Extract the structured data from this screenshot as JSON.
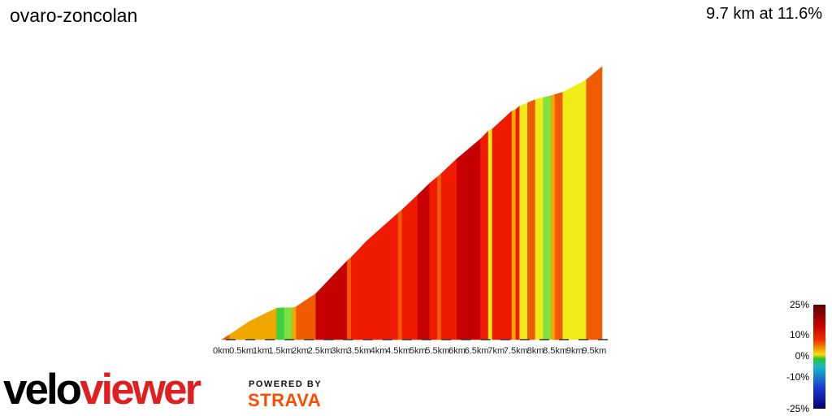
{
  "header": {
    "title": "ovaro-zoncolan",
    "summary": "9.7 km at 11.6%"
  },
  "legend": {
    "labels": [
      "25%",
      "10%",
      "0%",
      "-10%",
      "-25%"
    ]
  },
  "branding": {
    "logo_part1": "velo",
    "logo_part2": "viewer",
    "powered_by": "POWERED BY",
    "strava": "STRAVA"
  },
  "colors": {
    "extreme": "#c40000",
    "steep": "#f01a00",
    "hard": "#f05a00",
    "moderate": "#f0a800",
    "easy": "#f0ec18",
    "flat": "#7fe040",
    "green": "#40d040"
  },
  "chart_data": {
    "type": "area",
    "title": "ovaro-zoncolan",
    "xlabel": "",
    "ylabel": "",
    "xlim": [
      0,
      9.7
    ],
    "x_ticks": [
      "0km",
      "0.5km",
      "1km",
      "1.5km",
      "2km",
      "2.5km",
      "3km",
      "3.5km",
      "4km",
      "4.5km",
      "5km",
      "5.5km",
      "6km",
      "6.5km",
      "7km",
      "7.5km",
      "8km",
      "8.5km",
      "9km",
      "9.5km"
    ],
    "segments": [
      {
        "from": 0.0,
        "to": 0.2,
        "elev_start": 0,
        "elev_end": 15,
        "grade_class": "hard"
      },
      {
        "from": 0.2,
        "to": 0.7,
        "elev_start": 15,
        "elev_end": 55,
        "grade_class": "moderate"
      },
      {
        "from": 0.7,
        "to": 1.4,
        "elev_start": 55,
        "elev_end": 96,
        "grade_class": "moderate"
      },
      {
        "from": 1.4,
        "to": 1.6,
        "elev_start": 96,
        "elev_end": 97,
        "grade_class": "green"
      },
      {
        "from": 1.6,
        "to": 1.8,
        "elev_start": 97,
        "elev_end": 97,
        "grade_class": "flat"
      },
      {
        "from": 1.8,
        "to": 1.9,
        "elev_start": 97,
        "elev_end": 100,
        "grade_class": "moderate"
      },
      {
        "from": 1.9,
        "to": 2.4,
        "elev_start": 100,
        "elev_end": 140,
        "grade_class": "hard"
      },
      {
        "from": 2.4,
        "to": 3.2,
        "elev_start": 140,
        "elev_end": 240,
        "grade_class": "extreme"
      },
      {
        "from": 3.2,
        "to": 3.3,
        "elev_start": 240,
        "elev_end": 250,
        "grade_class": "hard"
      },
      {
        "from": 3.3,
        "to": 3.7,
        "elev_start": 250,
        "elev_end": 300,
        "grade_class": "steep"
      },
      {
        "from": 3.7,
        "to": 4.5,
        "elev_start": 300,
        "elev_end": 385,
        "grade_class": "steep"
      },
      {
        "from": 4.5,
        "to": 4.6,
        "elev_start": 385,
        "elev_end": 395,
        "grade_class": "hard"
      },
      {
        "from": 4.6,
        "to": 5.0,
        "elev_start": 395,
        "elev_end": 440,
        "grade_class": "steep"
      },
      {
        "from": 5.0,
        "to": 5.3,
        "elev_start": 440,
        "elev_end": 475,
        "grade_class": "extreme"
      },
      {
        "from": 5.3,
        "to": 5.5,
        "elev_start": 475,
        "elev_end": 495,
        "grade_class": "steep"
      },
      {
        "from": 5.5,
        "to": 5.6,
        "elev_start": 495,
        "elev_end": 505,
        "grade_class": "hard"
      },
      {
        "from": 5.6,
        "to": 6.0,
        "elev_start": 505,
        "elev_end": 550,
        "grade_class": "steep"
      },
      {
        "from": 6.0,
        "to": 6.6,
        "elev_start": 550,
        "elev_end": 610,
        "grade_class": "extreme"
      },
      {
        "from": 6.6,
        "to": 6.8,
        "elev_start": 610,
        "elev_end": 635,
        "grade_class": "steep"
      },
      {
        "from": 6.8,
        "to": 6.9,
        "elev_start": 635,
        "elev_end": 640,
        "grade_class": "easy"
      },
      {
        "from": 6.9,
        "to": 7.4,
        "elev_start": 640,
        "elev_end": 695,
        "grade_class": "steep"
      },
      {
        "from": 7.4,
        "to": 7.5,
        "elev_start": 695,
        "elev_end": 700,
        "grade_class": "moderate"
      },
      {
        "from": 7.5,
        "to": 7.6,
        "elev_start": 700,
        "elev_end": 710,
        "grade_class": "steep"
      },
      {
        "from": 7.6,
        "to": 7.8,
        "elev_start": 710,
        "elev_end": 720,
        "grade_class": "easy"
      },
      {
        "from": 7.8,
        "to": 8.0,
        "elev_start": 720,
        "elev_end": 730,
        "grade_class": "hard"
      },
      {
        "from": 8.0,
        "to": 8.2,
        "elev_start": 730,
        "elev_end": 736,
        "grade_class": "easy"
      },
      {
        "from": 8.2,
        "to": 8.4,
        "elev_start": 736,
        "elev_end": 742,
        "grade_class": "flat"
      },
      {
        "from": 8.4,
        "to": 8.5,
        "elev_start": 742,
        "elev_end": 745,
        "grade_class": "moderate"
      },
      {
        "from": 8.5,
        "to": 8.7,
        "elev_start": 745,
        "elev_end": 752,
        "grade_class": "hard"
      },
      {
        "from": 8.7,
        "to": 9.3,
        "elev_start": 752,
        "elev_end": 790,
        "grade_class": "easy"
      },
      {
        "from": 9.3,
        "to": 9.7,
        "elev_start": 790,
        "elev_end": 830,
        "grade_class": "hard"
      }
    ],
    "legend_scale": [
      "25%",
      "10%",
      "0%",
      "-10%",
      "-25%"
    ]
  }
}
